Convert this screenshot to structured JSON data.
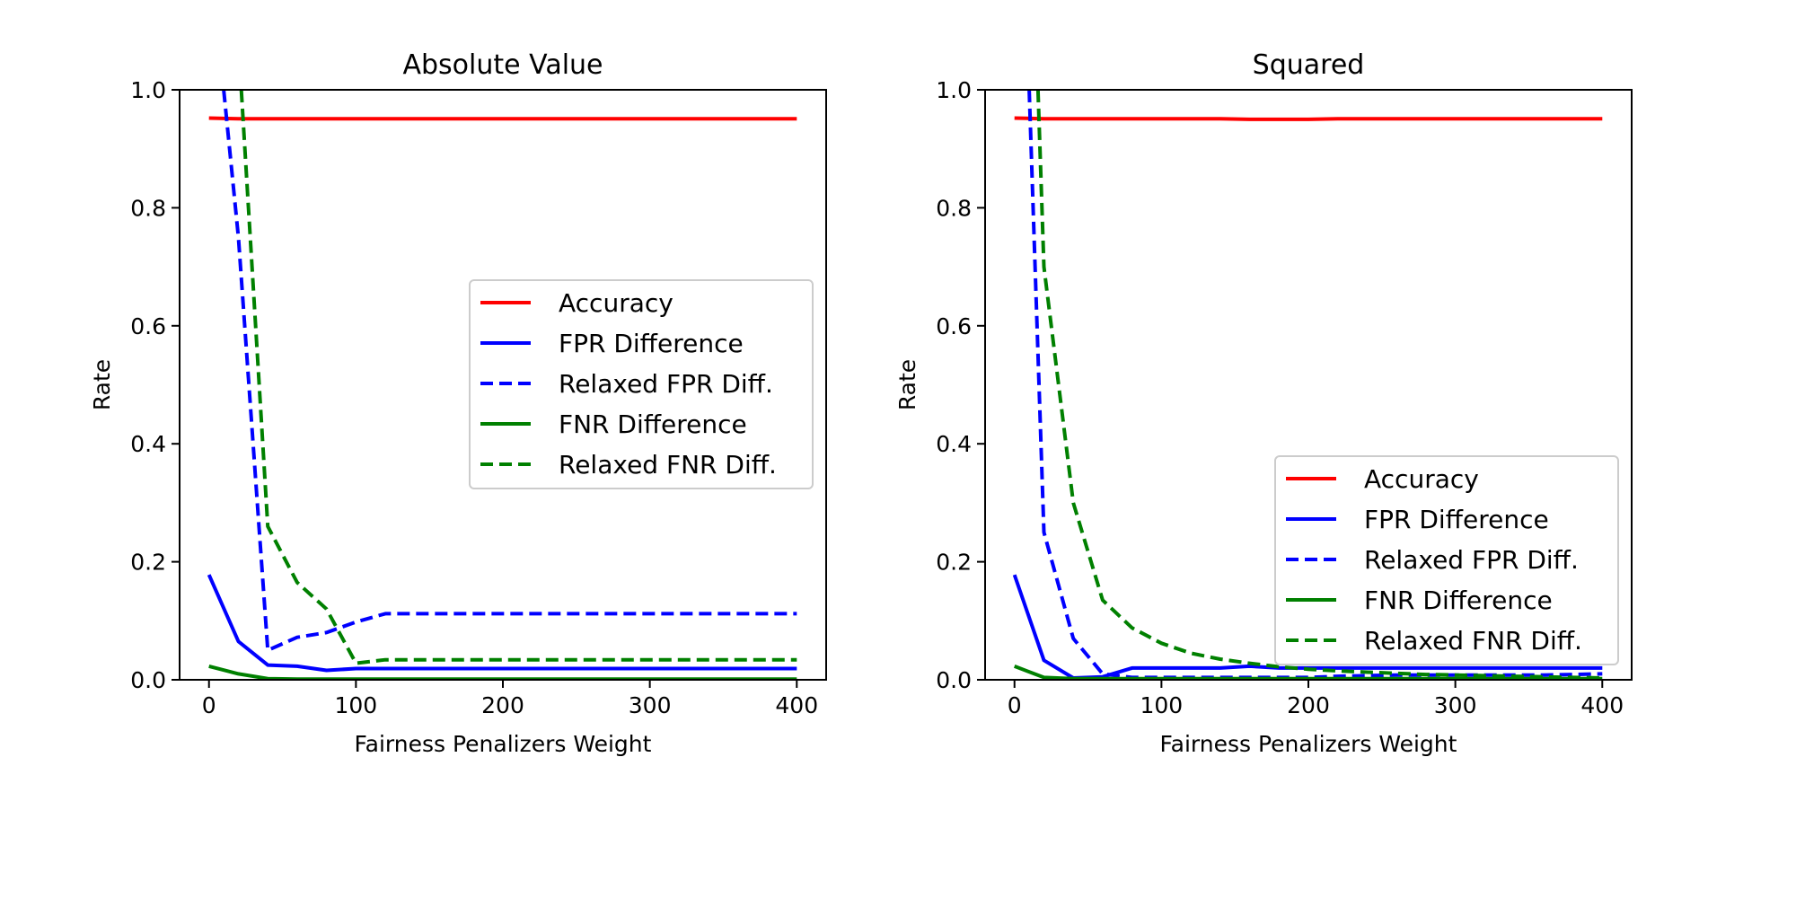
{
  "chart_data": [
    {
      "type": "line",
      "title": "Absolute Value",
      "xlabel": "Fairness Penalizers Weight",
      "ylabel": "Rate",
      "xlim": [
        -20,
        420
      ],
      "ylim": [
        0,
        1
      ],
      "xticks": [
        0,
        100,
        200,
        300,
        400
      ],
      "xtick_labels": [
        "0",
        "100",
        "200",
        "300",
        "400"
      ],
      "yticks": [
        0,
        0.2,
        0.4,
        0.6,
        0.8,
        1.0
      ],
      "ytick_labels": [
        "0.0",
        "0.2",
        "0.4",
        "0.6",
        "0.8",
        "1.0"
      ],
      "grid": false,
      "legend_position": "center-right",
      "series": [
        {
          "name": "Accuracy",
          "color": "#ff0000",
          "dash": "solid",
          "x": [
            0,
            20,
            40,
            60,
            80,
            100,
            120,
            140,
            160,
            180,
            200,
            220,
            240,
            260,
            280,
            300,
            320,
            340,
            360,
            380,
            400
          ],
          "y": [
            0.952,
            0.951,
            0.951,
            0.951,
            0.951,
            0.951,
            0.951,
            0.951,
            0.951,
            0.951,
            0.951,
            0.951,
            0.951,
            0.951,
            0.951,
            0.951,
            0.951,
            0.951,
            0.951,
            0.951,
            0.951
          ]
        },
        {
          "name": "FPR Difference",
          "color": "#0000ff",
          "dash": "solid",
          "x": [
            0,
            20,
            40,
            60,
            80,
            100,
            120,
            140,
            160,
            180,
            200,
            220,
            240,
            260,
            280,
            300,
            320,
            340,
            360,
            380,
            400
          ],
          "y": [
            0.178,
            0.065,
            0.025,
            0.023,
            0.016,
            0.019,
            0.019,
            0.019,
            0.019,
            0.019,
            0.019,
            0.019,
            0.019,
            0.019,
            0.019,
            0.019,
            0.019,
            0.019,
            0.019,
            0.019,
            0.019
          ]
        },
        {
          "name": "Relaxed FPR Diff.",
          "color": "#0000ff",
          "dash": "dashed",
          "x": [
            10,
            20,
            40,
            60,
            80,
            100,
            120,
            140,
            160,
            180,
            200,
            220,
            240,
            260,
            280,
            300,
            320,
            340,
            360,
            380,
            400
          ],
          "y": [
            1.0,
            0.75,
            0.05,
            0.072,
            0.08,
            0.098,
            0.112,
            0.112,
            0.112,
            0.112,
            0.112,
            0.112,
            0.112,
            0.112,
            0.112,
            0.112,
            0.112,
            0.112,
            0.112,
            0.112,
            0.112
          ]
        },
        {
          "name": "FNR Difference",
          "color": "#008000",
          "dash": "solid",
          "x": [
            0,
            20,
            40,
            60,
            80,
            100,
            120,
            140,
            160,
            180,
            200,
            220,
            240,
            260,
            280,
            300,
            320,
            340,
            360,
            380,
            400
          ],
          "y": [
            0.023,
            0.01,
            0.002,
            0.001,
            0.001,
            0.001,
            0.001,
            0.001,
            0.001,
            0.001,
            0.001,
            0.001,
            0.001,
            0.001,
            0.001,
            0.001,
            0.001,
            0.001,
            0.001,
            0.001,
            0.001
          ]
        },
        {
          "name": "Relaxed FNR Diff.",
          "color": "#008000",
          "dash": "dashed",
          "x": [
            22,
            40,
            60,
            80,
            100,
            120,
            140,
            160,
            180,
            200,
            220,
            240,
            260,
            280,
            300,
            320,
            340,
            360,
            380,
            400
          ],
          "y": [
            1.0,
            0.26,
            0.165,
            0.12,
            0.028,
            0.034,
            0.034,
            0.034,
            0.034,
            0.034,
            0.034,
            0.034,
            0.034,
            0.034,
            0.034,
            0.034,
            0.034,
            0.034,
            0.034,
            0.034
          ]
        }
      ]
    },
    {
      "type": "line",
      "title": "Squared",
      "xlabel": "Fairness Penalizers Weight",
      "ylabel": "Rate",
      "xlim": [
        -20,
        420
      ],
      "ylim": [
        0,
        1
      ],
      "xticks": [
        0,
        100,
        200,
        300,
        400
      ],
      "xtick_labels": [
        "0",
        "100",
        "200",
        "300",
        "400"
      ],
      "yticks": [
        0,
        0.2,
        0.4,
        0.6,
        0.8,
        1.0
      ],
      "ytick_labels": [
        "0.0",
        "0.2",
        "0.4",
        "0.6",
        "0.8",
        "1.0"
      ],
      "grid": false,
      "legend_position": "lower-right",
      "series": [
        {
          "name": "Accuracy",
          "color": "#ff0000",
          "dash": "solid",
          "x": [
            0,
            20,
            40,
            60,
            80,
            100,
            120,
            140,
            160,
            180,
            200,
            220,
            240,
            260,
            280,
            300,
            320,
            340,
            360,
            380,
            400
          ],
          "y": [
            0.952,
            0.951,
            0.951,
            0.951,
            0.951,
            0.951,
            0.951,
            0.951,
            0.95,
            0.95,
            0.95,
            0.951,
            0.951,
            0.951,
            0.951,
            0.951,
            0.951,
            0.951,
            0.951,
            0.951,
            0.951
          ]
        },
        {
          "name": "FPR Difference",
          "color": "#0000ff",
          "dash": "solid",
          "x": [
            0,
            20,
            40,
            60,
            80,
            100,
            120,
            140,
            160,
            180,
            200,
            220,
            240,
            260,
            280,
            300,
            320,
            340,
            360,
            380,
            400
          ],
          "y": [
            0.178,
            0.033,
            0.003,
            0.005,
            0.02,
            0.02,
            0.02,
            0.02,
            0.023,
            0.02,
            0.02,
            0.02,
            0.02,
            0.02,
            0.02,
            0.02,
            0.02,
            0.02,
            0.02,
            0.02,
            0.02
          ]
        },
        {
          "name": "Relaxed FPR Diff.",
          "color": "#0000ff",
          "dash": "dashed",
          "x": [
            10,
            20,
            40,
            60,
            80,
            100,
            120,
            140,
            160,
            180,
            200,
            220,
            240,
            260,
            280,
            300,
            320,
            340,
            360,
            380,
            400
          ],
          "y": [
            1.0,
            0.25,
            0.07,
            0.01,
            0.004,
            0.004,
            0.004,
            0.004,
            0.004,
            0.004,
            0.004,
            0.006,
            0.007,
            0.008,
            0.008,
            0.008,
            0.008,
            0.008,
            0.008,
            0.009,
            0.01
          ]
        },
        {
          "name": "FNR Difference",
          "color": "#008000",
          "dash": "solid",
          "x": [
            0,
            20,
            40,
            60,
            80,
            100,
            120,
            140,
            160,
            180,
            200,
            220,
            240,
            260,
            280,
            300,
            320,
            340,
            360,
            380,
            400
          ],
          "y": [
            0.023,
            0.004,
            0.002,
            0.002,
            0.002,
            0.002,
            0.002,
            0.002,
            0.002,
            0.002,
            0.002,
            0.002,
            0.002,
            0.002,
            0.002,
            0.002,
            0.002,
            0.002,
            0.002,
            0.002,
            0.002
          ]
        },
        {
          "name": "Relaxed FNR Diff.",
          "color": "#008000",
          "dash": "dashed",
          "x": [
            16,
            20,
            40,
            60,
            80,
            100,
            120,
            140,
            160,
            180,
            200,
            220,
            240,
            260,
            280,
            300,
            320,
            340,
            360,
            380,
            400
          ],
          "y": [
            1.0,
            0.7,
            0.3,
            0.135,
            0.088,
            0.062,
            0.045,
            0.035,
            0.028,
            0.022,
            0.018,
            0.015,
            0.013,
            0.011,
            0.009,
            0.008,
            0.007,
            0.006,
            0.005,
            0.004,
            0.003
          ]
        }
      ]
    }
  ]
}
